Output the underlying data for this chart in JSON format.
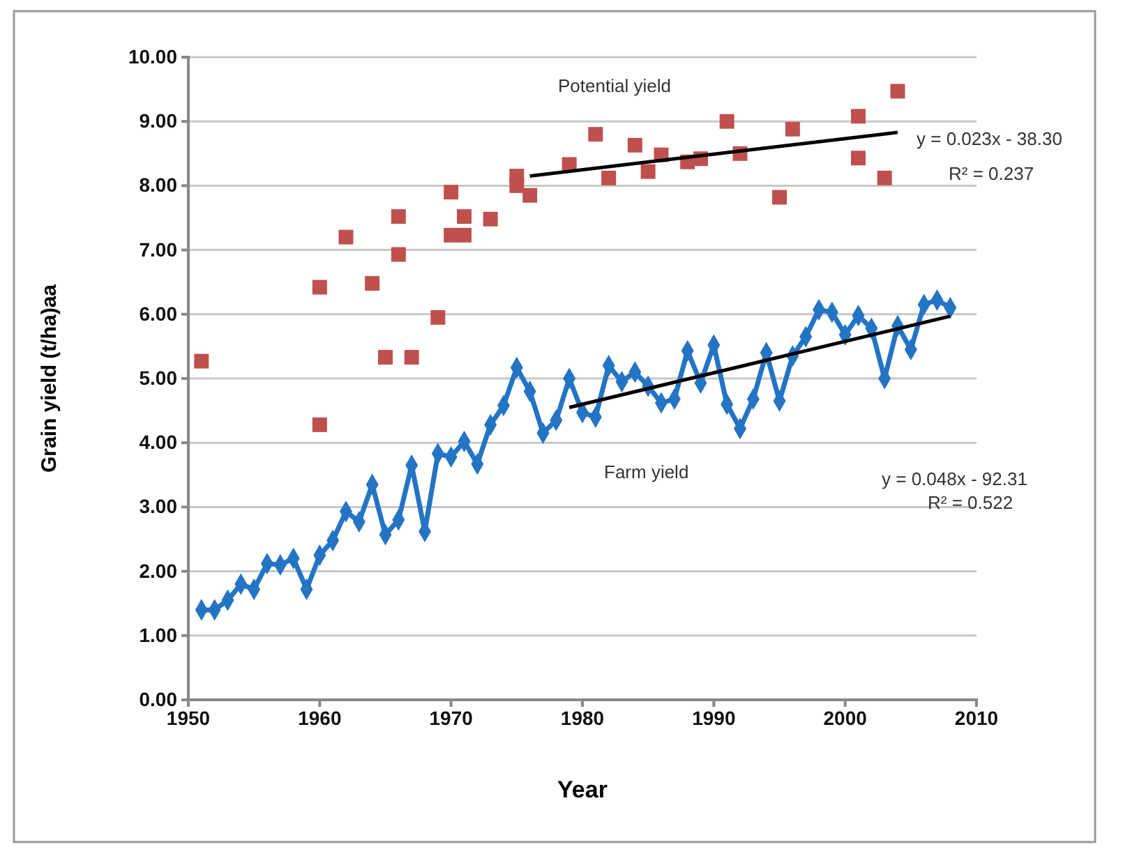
{
  "chart_data": {
    "type": "line",
    "xlabel": "Year",
    "ylabel": "Grain yield (t/ha)aa",
    "xlim": [
      1950,
      2010
    ],
    "xticks": [
      1950,
      1960,
      1970,
      1980,
      1990,
      2000,
      2010
    ],
    "ylim": [
      0,
      10
    ],
    "yticks": [
      {
        "value": 0,
        "label": "0.00"
      },
      {
        "value": 1,
        "label": "1.00"
      },
      {
        "value": 2,
        "label": "2.00"
      },
      {
        "value": 3,
        "label": "3.00"
      },
      {
        "value": 4,
        "label": "4.00"
      },
      {
        "value": 5,
        "label": "5.00"
      },
      {
        "value": 6,
        "label": "6.00"
      },
      {
        "value": 7,
        "label": "7.00"
      },
      {
        "value": 8,
        "label": "8.00"
      },
      {
        "value": 9,
        "label": "9.00"
      },
      {
        "value": 10,
        "label": "10.00"
      }
    ],
    "grid": "y",
    "series": [
      {
        "type": "scatter",
        "marker": "square",
        "color": "#c0504d",
        "x": [
          1951,
          1960,
          1960,
          1962,
          1964,
          1965,
          1966,
          1966,
          1967,
          1969,
          1970,
          1970,
          1971,
          1971,
          1973,
          1975,
          1975,
          1976,
          1979,
          1981,
          1982,
          1984,
          1985,
          1986,
          1988,
          1989,
          1991,
          1992,
          1995,
          1996,
          2001,
          2001,
          2003,
          2004
        ],
        "values": [
          5.27,
          6.42,
          4.28,
          7.2,
          6.48,
          5.33,
          7.52,
          6.93,
          5.33,
          5.95,
          7.9,
          7.23,
          7.52,
          7.23,
          7.48,
          8.15,
          8.0,
          7.85,
          8.33,
          8.8,
          8.12,
          8.63,
          8.22,
          8.48,
          8.37,
          8.42,
          9.0,
          8.5,
          7.82,
          8.88,
          9.08,
          8.43,
          8.12,
          9.47
        ]
      },
      {
        "marker": "diamond",
        "color": "#2474c4",
        "x": [
          1951,
          1952,
          1953,
          1954,
          1955,
          1956,
          1957,
          1958,
          1959,
          1960,
          1961,
          1962,
          1963,
          1964,
          1965,
          1966,
          1967,
          1968,
          1969,
          1970,
          1971,
          1972,
          1973,
          1974,
          1975,
          1976,
          1977,
          1978,
          1979,
          1980,
          1981,
          1982,
          1983,
          1984,
          1985,
          1986,
          1987,
          1988,
          1989,
          1990,
          1991,
          1992,
          1993,
          1994,
          1995,
          1996,
          1997,
          1998,
          1999,
          2000,
          2001,
          2002,
          2003,
          2004,
          2005,
          2006,
          2007,
          2008
        ],
        "values": [
          1.4,
          1.4,
          1.55,
          1.8,
          1.72,
          2.12,
          2.1,
          2.2,
          1.72,
          2.25,
          2.48,
          2.93,
          2.77,
          3.35,
          2.57,
          2.8,
          3.65,
          2.62,
          3.83,
          3.78,
          4.02,
          3.67,
          4.28,
          4.58,
          5.17,
          4.8,
          4.15,
          4.35,
          5.0,
          4.47,
          4.4,
          5.2,
          4.95,
          5.1,
          4.88,
          4.62,
          4.68,
          5.43,
          4.93,
          5.52,
          4.6,
          4.22,
          4.68,
          5.4,
          4.65,
          5.35,
          5.65,
          6.07,
          6.03,
          5.68,
          5.98,
          5.78,
          5.0,
          5.82,
          5.45,
          6.15,
          6.22,
          6.1
        ]
      },
      {
        "type": "line",
        "marker": "none",
        "color": "#000000",
        "x": [
          1976,
          2004
        ],
        "values": [
          8.15,
          8.83
        ]
      },
      {
        "type": "line",
        "marker": "none",
        "color": "#000000",
        "x": [
          1979,
          2008
        ],
        "values": [
          4.55,
          5.97
        ]
      }
    ],
    "annotations": [
      "Potential yield",
      "Farm yield",
      "y = 0.023x - 38.30",
      "R² = 0.237",
      "y = 0.048x - 92.31",
      "R² = 0.522"
    ]
  }
}
